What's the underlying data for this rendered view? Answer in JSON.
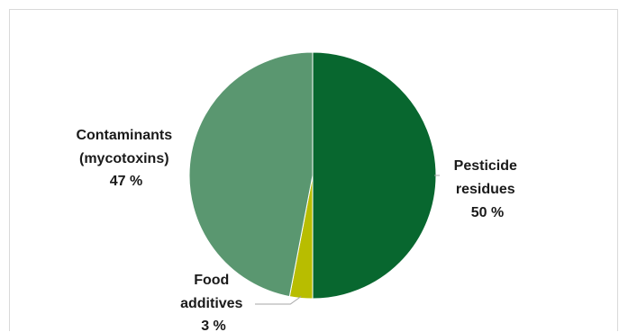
{
  "chart_data": {
    "type": "pie",
    "slices": [
      {
        "label_lines": [
          "Pesticide",
          "residues"
        ],
        "value": 50,
        "value_label": "50 %",
        "color": "#08672f"
      },
      {
        "label_lines": [
          "Food",
          "additives"
        ],
        "value": 3,
        "value_label": "3 %",
        "color": "#b8bd00"
      },
      {
        "label_lines": [
          "Contaminants",
          "(mycotoxins)"
        ],
        "value": 47,
        "value_label": "47 %",
        "color": "#5a9770"
      }
    ],
    "start_angle_deg": 0,
    "direction": "clockwise",
    "leader_line_color": "#a6a6a6",
    "legend": "none"
  }
}
